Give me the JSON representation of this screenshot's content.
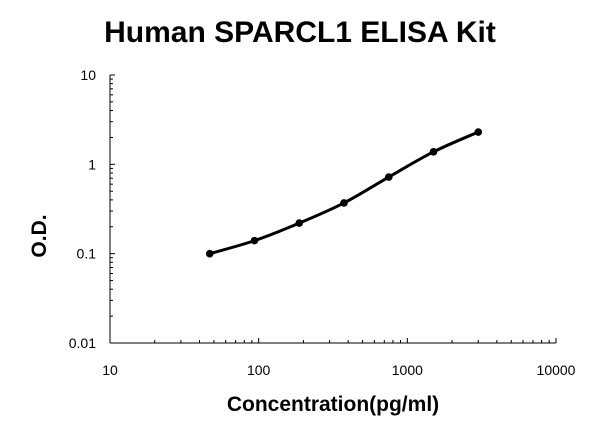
{
  "chart_data": {
    "type": "line",
    "title": "Human SPARCL1 ELISA Kit",
    "xlabel": "Concentration(pg/ml)",
    "ylabel": "O.D.",
    "xscale": "log",
    "yscale": "log",
    "xlim": [
      10,
      10000
    ],
    "ylim": [
      0.01,
      10
    ],
    "xticks": [
      "10",
      "100",
      "1000",
      "10000"
    ],
    "yticks": [
      "10",
      "1",
      "0.1",
      "0.01"
    ],
    "grid": false,
    "legend": "none",
    "series": [
      {
        "color": "#000000",
        "marker": "circle",
        "x": [
          46.875,
          93.75,
          187.5,
          375,
          750,
          1500,
          3000
        ],
        "y": [
          0.1,
          0.14,
          0.22,
          0.37,
          0.72,
          1.38,
          2.3
        ]
      }
    ]
  }
}
